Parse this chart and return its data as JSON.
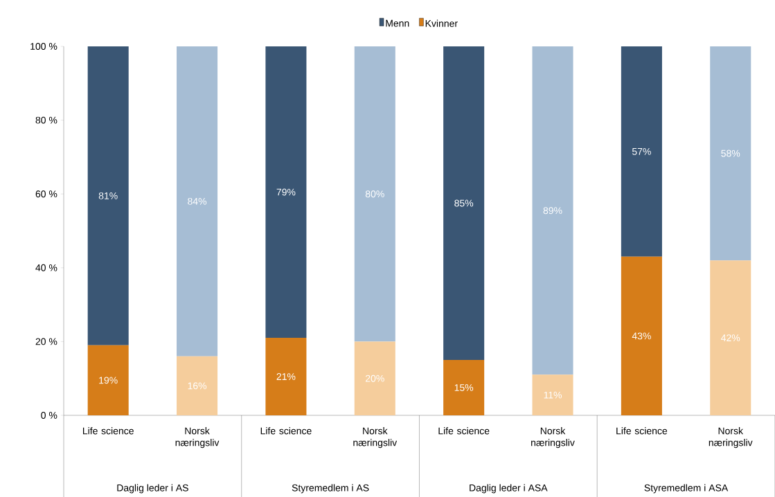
{
  "chart_data": {
    "type": "bar",
    "stacked": true,
    "legend": "top",
    "categories": [
      "Life science",
      "Norsk næringsliv",
      "Life science",
      "Norsk næringsliv",
      "Life science",
      "Norsk næringsliv",
      "Life science",
      "Norsk næringsliv"
    ],
    "annotations": [
      "Daglig leder i AS",
      "Styremedlem i AS",
      "Daglig leder i ASA",
      "Styremedlem i ASA"
    ],
    "ylim": [
      0,
      100
    ],
    "yticks": [
      {
        "value": 0,
        "label": "0 %"
      },
      {
        "value": 20,
        "label": "20 %"
      },
      {
        "value": 40,
        "label": "40 %"
      },
      {
        "value": 60,
        "label": "60 %"
      },
      {
        "value": 80,
        "label": "80 %"
      },
      {
        "value": 100,
        "label": "100 %"
      }
    ],
    "series": [
      {
        "name": "Kvinner",
        "color": "#d67d19",
        "colors": [
          "#d67d19",
          "#f5cd9c",
          "#d67d19",
          "#f5cd9c",
          "#d67d19",
          "#f5cd9c",
          "#d67d19",
          "#f5cd9c"
        ],
        "values": [
          19,
          16,
          21,
          20,
          15,
          11,
          43,
          42
        ],
        "value_labels": [
          "19%",
          "16%",
          "21%",
          "20%",
          "15%",
          "11%",
          "43%",
          "42%"
        ]
      },
      {
        "name": "Menn",
        "color": "#3a5674",
        "colors": [
          "#3a5674",
          "#a6bdd4",
          "#3a5674",
          "#a6bdd4",
          "#3a5674",
          "#a6bdd4",
          "#3a5674",
          "#a6bdd4"
        ],
        "values": [
          81,
          84,
          79,
          80,
          85,
          89,
          57,
          58
        ],
        "value_labels": [
          "81%",
          "84%",
          "79%",
          "80%",
          "85%",
          "89%",
          "57%",
          "58%"
        ]
      }
    ]
  }
}
